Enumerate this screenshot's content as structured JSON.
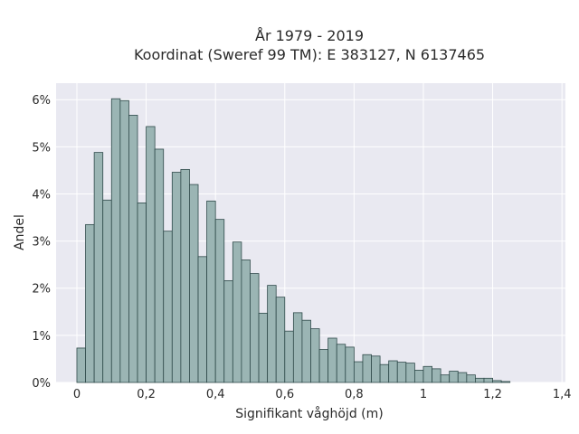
{
  "chart_data": {
    "type": "bar",
    "title": "År 1979 - 2019",
    "subtitle": "Koordinat (Sweref 99 TM): E 383127, N 6137465",
    "xlabel": "Signifikant våghöjd (m)",
    "ylabel": "Andel",
    "xlim": [
      -0.06,
      1.41
    ],
    "ylim": [
      0,
      6.35
    ],
    "x_ticks": [
      0,
      0.2,
      0.4,
      0.6,
      0.8,
      1.0,
      1.2,
      1.4
    ],
    "x_tick_labels": [
      "0",
      "0,2",
      "0,4",
      "0,6",
      "0,8",
      "1",
      "1,2",
      "1,4"
    ],
    "y_ticks": [
      0,
      1,
      2,
      3,
      4,
      5,
      6
    ],
    "y_tick_labels": [
      "0%",
      "1%",
      "2%",
      "3%",
      "4%",
      "5%",
      "6%"
    ],
    "grid": true,
    "bin_start": 0.0,
    "bin_width": 0.025,
    "values": [
      0.73,
      3.35,
      4.88,
      3.87,
      6.02,
      5.98,
      5.67,
      3.81,
      5.43,
      4.95,
      3.21,
      4.46,
      4.52,
      4.2,
      2.67,
      3.85,
      3.46,
      2.16,
      2.98,
      2.6,
      2.31,
      1.47,
      2.06,
      1.81,
      1.09,
      1.48,
      1.32,
      1.14,
      0.7,
      0.94,
      0.81,
      0.75,
      0.44,
      0.59,
      0.56,
      0.38,
      0.46,
      0.43,
      0.41,
      0.26,
      0.34,
      0.29,
      0.16,
      0.24,
      0.21,
      0.16,
      0.09,
      0.09,
      0.04,
      0.02
    ],
    "colors": {
      "bar_fill": "#9bb5b4",
      "bar_edge": "#2f4a4a",
      "plot_background": "#e9e9f1",
      "grid": "#ffffff"
    }
  }
}
